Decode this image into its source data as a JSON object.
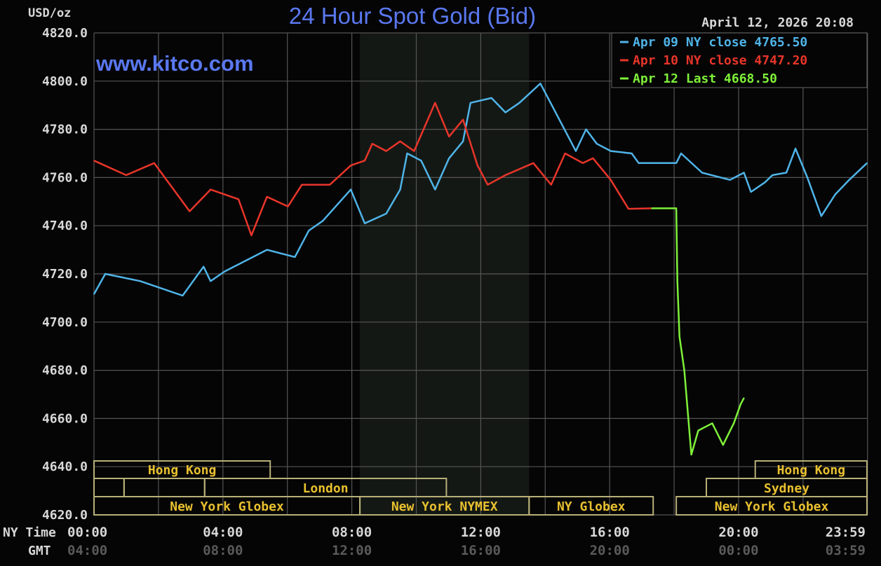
{
  "chart_data": {
    "type": "line",
    "title": "24 Hour Spot Gold (Bid)",
    "watermark": "www.kitco.com",
    "timestamp": "April 12, 2026 20:08",
    "ylabel": "USD/oz",
    "ylim": [
      4620,
      4820
    ],
    "yticks": [
      "4820.0",
      "4800.0",
      "4780.0",
      "4760.0",
      "4740.0",
      "4720.0",
      "4700.0",
      "4680.0",
      "4660.0",
      "4640.0",
      "4620.0"
    ],
    "xlim": [
      "00:00",
      "23:59"
    ],
    "x_axis_rows": [
      {
        "label": "NY Time",
        "ticks": [
          "00:00",
          "04:00",
          "08:00",
          "12:00",
          "16:00",
          "20:00",
          "23:59"
        ]
      },
      {
        "label": "GMT",
        "ticks": [
          "04:00",
          "08:00",
          "12:00",
          "16:00",
          "20:00",
          "00:00",
          "03:59"
        ]
      }
    ],
    "grid": true,
    "legend_position": "top-right",
    "shaded_period": [
      "08:15",
      "13:30"
    ],
    "series": [
      {
        "name": "Apr 09 NY close 4765.50",
        "color": "#4fb4e8",
        "points": [
          [
            "00:00",
            4711.6
          ],
          [
            "00:21",
            4720
          ],
          [
            "01:26",
            4717
          ],
          [
            "02:45",
            4711
          ],
          [
            "03:24",
            4723
          ],
          [
            "03:37",
            4717
          ],
          [
            "04:03",
            4721
          ],
          [
            "05:22",
            4730
          ],
          [
            "06:14",
            4727
          ],
          [
            "06:40",
            4738
          ],
          [
            "07:06",
            4742
          ],
          [
            "07:58",
            4755
          ],
          [
            "08:24",
            4741
          ],
          [
            "09:04",
            4745
          ],
          [
            "09:30",
            4755
          ],
          [
            "09:43",
            4770
          ],
          [
            "10:09",
            4767
          ],
          [
            "10:35",
            4755
          ],
          [
            "11:01",
            4768
          ],
          [
            "11:27",
            4775
          ],
          [
            "11:41",
            4791
          ],
          [
            "12:20",
            4793
          ],
          [
            "12:46",
            4787
          ],
          [
            "13:12",
            4791
          ],
          [
            "13:51",
            4799
          ],
          [
            "14:17",
            4788
          ],
          [
            "14:57",
            4771
          ],
          [
            "15:16",
            4780
          ],
          [
            "15:36",
            4774
          ],
          [
            "16:02",
            4771
          ],
          [
            "16:41",
            4770
          ],
          [
            "16:54",
            4766
          ],
          [
            "18:04",
            4766
          ],
          [
            "18:13",
            4770
          ],
          [
            "18:52",
            4762
          ],
          [
            "19:44",
            4759
          ],
          [
            "20:10",
            4762
          ],
          [
            "20:23",
            4754
          ],
          [
            "20:49",
            4758
          ],
          [
            "21:03",
            4761
          ],
          [
            "21:29",
            4762
          ],
          [
            "21:46",
            4772
          ],
          [
            "22:08",
            4760
          ],
          [
            "22:34",
            4744
          ],
          [
            "23:00",
            4753
          ],
          [
            "23:26",
            4759
          ],
          [
            "23:59",
            4766
          ]
        ]
      },
      {
        "name": "Apr 10 NY close 4747.20",
        "color": "#e8352a",
        "points": [
          [
            "00:00",
            4767
          ],
          [
            "01:00",
            4761
          ],
          [
            "01:52",
            4766
          ],
          [
            "02:58",
            4746
          ],
          [
            "03:37",
            4755
          ],
          [
            "04:29",
            4751
          ],
          [
            "04:53",
            4736
          ],
          [
            "05:22",
            4752
          ],
          [
            "06:01",
            4748
          ],
          [
            "06:27",
            4757
          ],
          [
            "07:19",
            4757
          ],
          [
            "07:58",
            4765
          ],
          [
            "08:24",
            4767
          ],
          [
            "08:38",
            4774
          ],
          [
            "09:04",
            4771
          ],
          [
            "09:30",
            4775
          ],
          [
            "09:56",
            4771
          ],
          [
            "10:35",
            4791
          ],
          [
            "11:01",
            4777
          ],
          [
            "11:27",
            4784
          ],
          [
            "11:54",
            4765
          ],
          [
            "12:13",
            4757
          ],
          [
            "12:46",
            4761
          ],
          [
            "13:38",
            4766
          ],
          [
            "14:11",
            4757
          ],
          [
            "14:37",
            4770
          ],
          [
            "15:10",
            4766
          ],
          [
            "15:29",
            4768
          ],
          [
            "16:02",
            4759
          ],
          [
            "16:35",
            4747
          ],
          [
            "17:18",
            4747.2
          ]
        ]
      },
      {
        "name": "Apr 12 Last 4668.50",
        "color": "#7ef03a",
        "points": [
          [
            "17:18",
            4747.2
          ],
          [
            "18:04",
            4747.2
          ],
          [
            "18:06",
            4717
          ],
          [
            "18:10",
            4694
          ],
          [
            "18:19",
            4680
          ],
          [
            "18:32",
            4645
          ],
          [
            "18:45",
            4655
          ],
          [
            "19:11",
            4658
          ],
          [
            "19:31",
            4649
          ],
          [
            "19:51",
            4658
          ],
          [
            "20:04",
            4666
          ],
          [
            "20:10",
            4668.5
          ]
        ]
      }
    ],
    "sessions": [
      {
        "row": 1,
        "label": "Hong Kong",
        "start": "00:00",
        "end": "05:28"
      },
      {
        "row": 1,
        "label": "Hong Kong",
        "start": "20:31",
        "end": "23:59"
      },
      {
        "row": 2,
        "label": "",
        "start": "00:00",
        "end": "00:56"
      },
      {
        "row": 2,
        "label": "",
        "start": "00:56",
        "end": "03:26"
      },
      {
        "row": 2,
        "label": "London",
        "start": "03:26",
        "end": "10:56"
      },
      {
        "row": 2,
        "label": "Sydney",
        "start": "19:00",
        "end": "23:59"
      },
      {
        "row": 3,
        "label": "New York Globex",
        "start": "00:00",
        "end": "08:15"
      },
      {
        "row": 3,
        "label": "New York NYMEX",
        "start": "08:15",
        "end": "13:30"
      },
      {
        "row": 3,
        "label": "NY Globex",
        "start": "13:30",
        "end": "17:21"
      },
      {
        "row": 3,
        "label": "New York Globex",
        "start": "18:04",
        "end": "23:59"
      }
    ]
  }
}
